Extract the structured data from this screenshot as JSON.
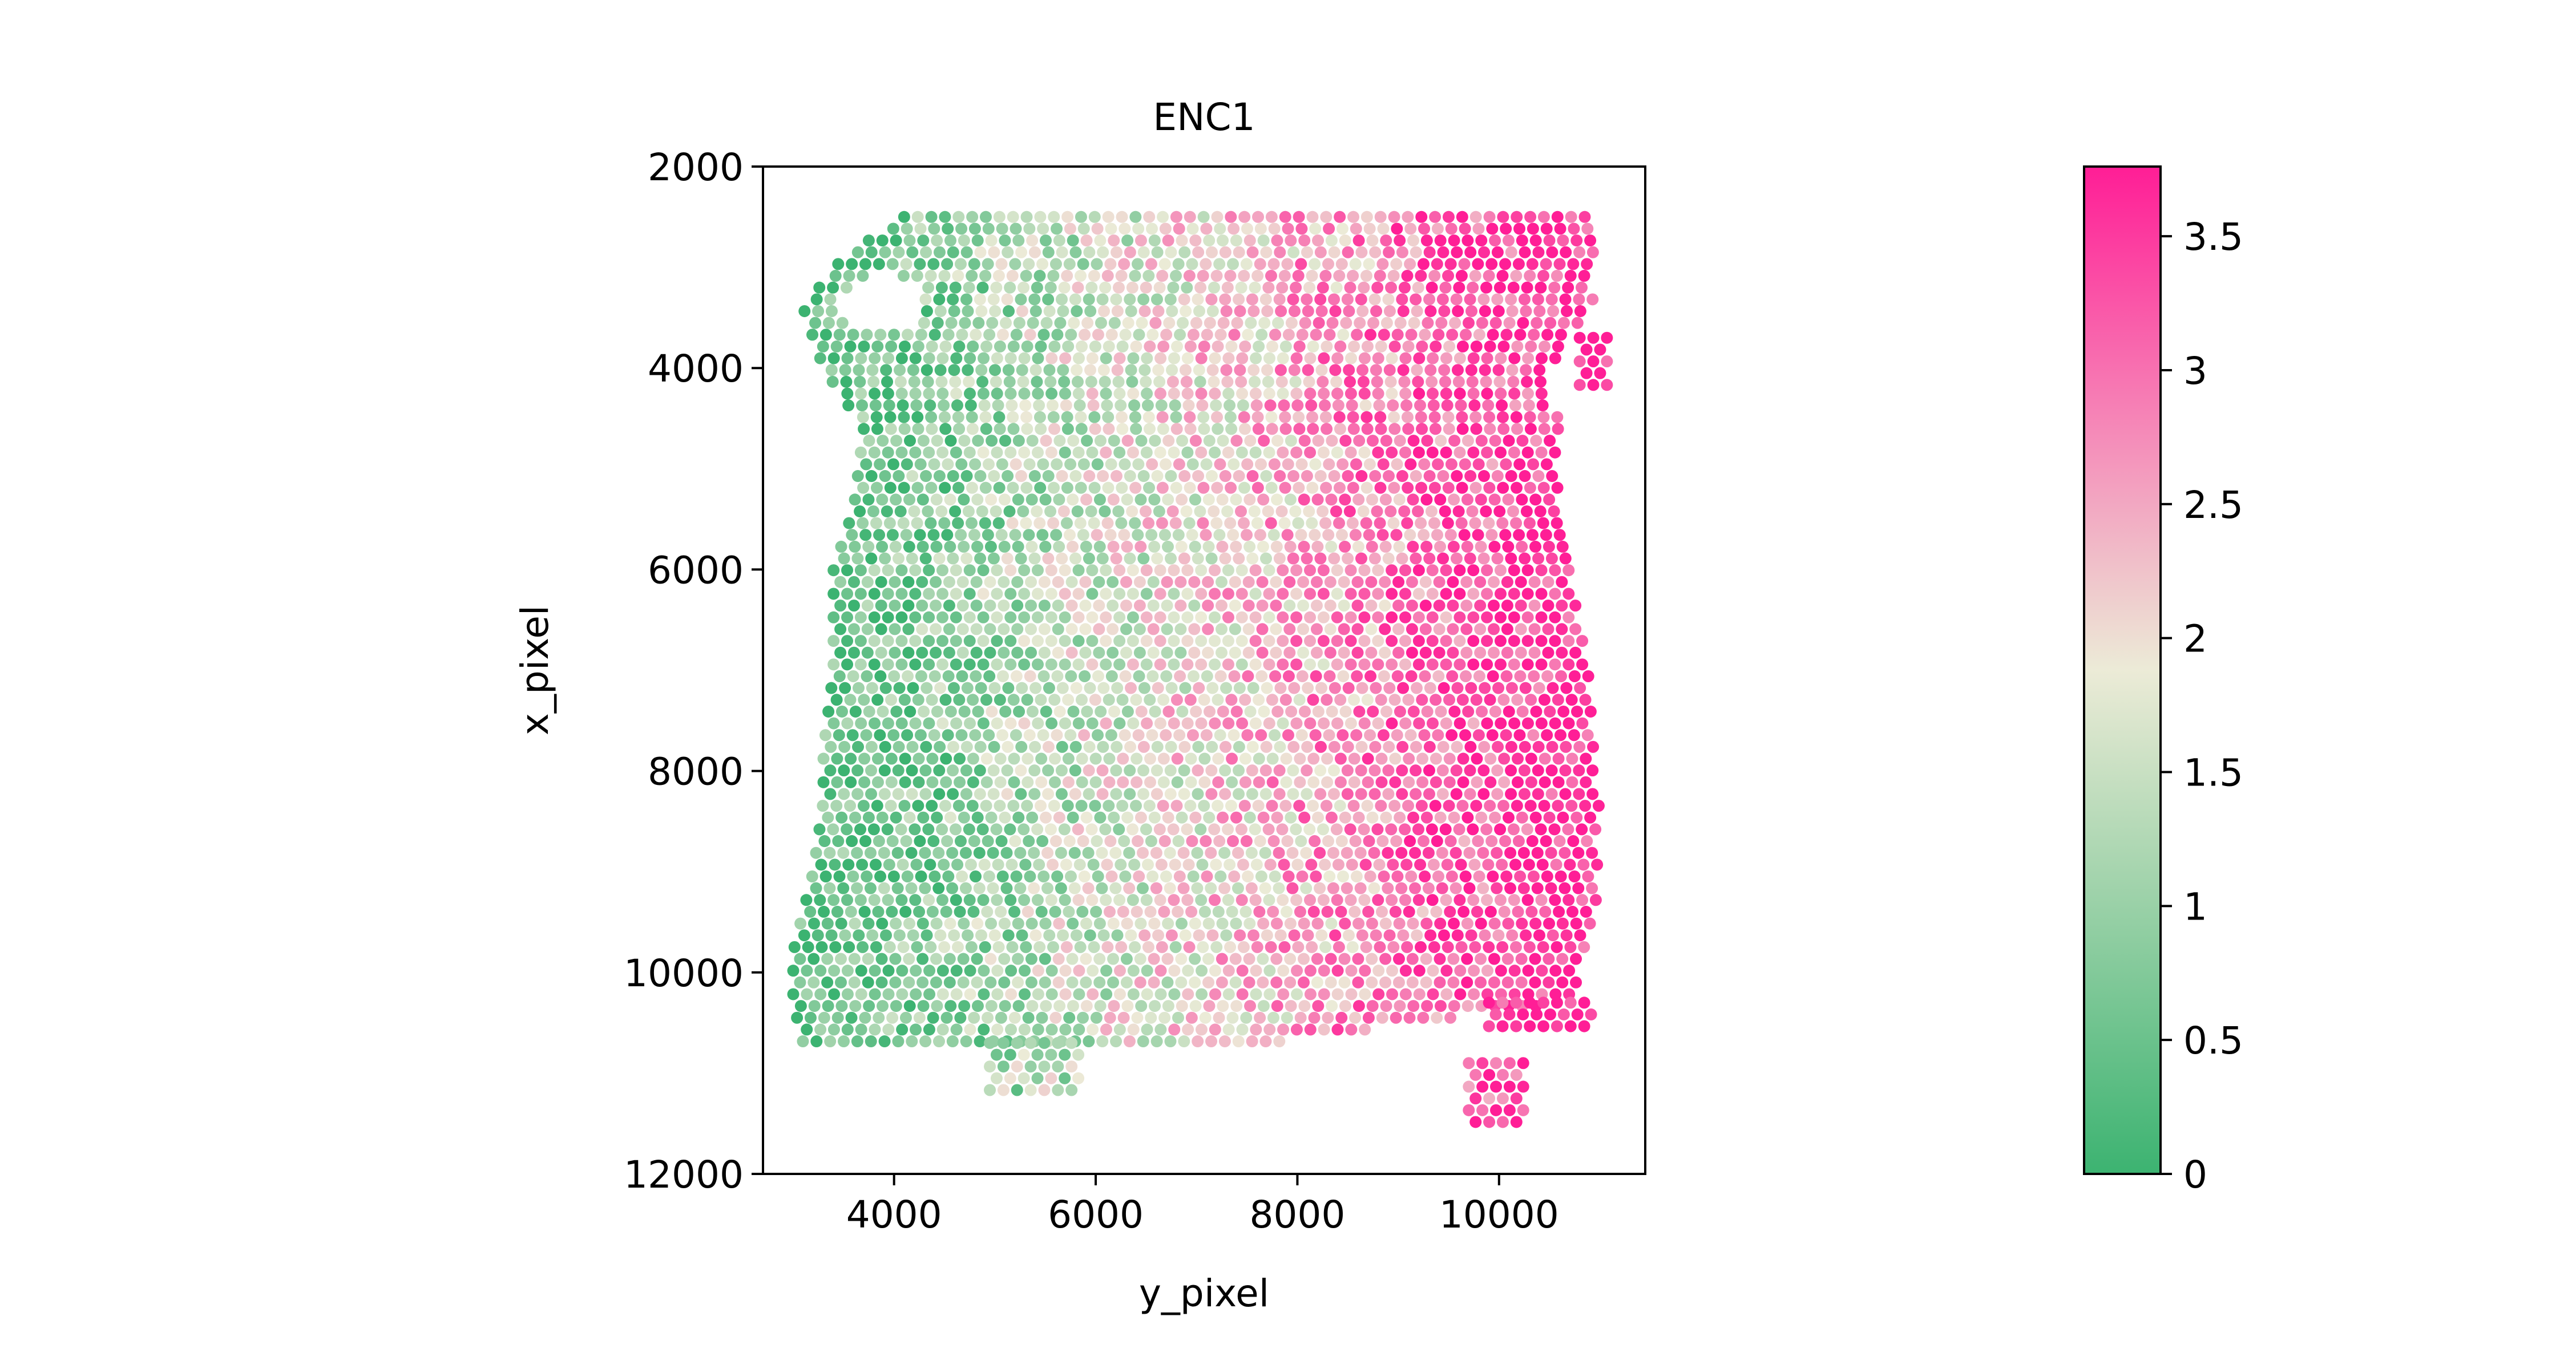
{
  "chart_data": {
    "type": "scatter",
    "title": "ENC1",
    "xlabel": "y_pixel",
    "ylabel": "x_pixel",
    "xlim": [
      2700,
      11450
    ],
    "ylim": [
      12000,
      2000
    ],
    "y_inverted": true,
    "xticks": [
      {
        "value": 4000,
        "label": "4000"
      },
      {
        "value": 6000,
        "label": "6000"
      },
      {
        "value": 8000,
        "label": "8000"
      },
      {
        "value": 10000,
        "label": "10000"
      }
    ],
    "yticks": [
      {
        "value": 2000,
        "label": "2000"
      },
      {
        "value": 4000,
        "label": "4000"
      },
      {
        "value": 6000,
        "label": "6000"
      },
      {
        "value": 8000,
        "label": "8000"
      },
      {
        "value": 10000,
        "label": "10000"
      },
      {
        "value": 12000,
        "label": "12000"
      }
    ],
    "grid": false,
    "colorbar": {
      "min": 0,
      "max": 3.76,
      "colors": [
        "#3cb371",
        "#ecebd7",
        "#ff1e96"
      ],
      "ticks": [
        {
          "value": 0,
          "label": "0"
        },
        {
          "value": 0.5,
          "label": "0.5"
        },
        {
          "value": 1,
          "label": "1"
        },
        {
          "value": 1.5,
          "label": "1.5"
        },
        {
          "value": 2,
          "label": "2"
        },
        {
          "value": 2.5,
          "label": "2.5"
        },
        {
          "value": 3,
          "label": "3"
        },
        {
          "value": 3.5,
          "label": "3.5"
        }
      ]
    },
    "tissue_spots": {
      "grid_step": 135,
      "rows": [
        {
          "x": 2500,
          "y_from": 4100,
          "y_to": 10950
        },
        {
          "x": 2900,
          "y_from": 3500,
          "y_to": 10950
        },
        {
          "x": 3400,
          "y_from": 3100,
          "y_to": 10950
        },
        {
          "x": 4000,
          "y_from": 3300,
          "y_to": 10500
        },
        {
          "x": 4600,
          "y_from": 3700,
          "y_to": 10600
        },
        {
          "x": 5400,
          "y_from": 3600,
          "y_to": 10600
        },
        {
          "x": 6000,
          "y_from": 3400,
          "y_to": 10700
        },
        {
          "x": 7000,
          "y_from": 3400,
          "y_to": 10900
        },
        {
          "x": 7800,
          "y_from": 3300,
          "y_to": 10950
        },
        {
          "x": 8300,
          "y_from": 3300,
          "y_to": 11000
        },
        {
          "x": 9000,
          "y_from": 3200,
          "y_to": 11000
        },
        {
          "x": 9800,
          "y_from": 3000,
          "y_to": 10900
        },
        {
          "x": 10300,
          "y_from": 3000,
          "y_to": 10700
        },
        {
          "x": 10700,
          "y_from": 3100,
          "y_to": 7800
        }
      ],
      "hole": {
        "y_center": 3900,
        "x_center": 3350,
        "y_radius": 400,
        "x_radius": 300
      },
      "extra_clusters": [
        {
          "y_from": 4950,
          "y_to": 5850,
          "x_from": 10700,
          "x_to": 11200
        },
        {
          "y_from": 9700,
          "y_to": 10300,
          "x_from": 10900,
          "x_to": 11600
        },
        {
          "y_from": 9900,
          "y_to": 10950,
          "x_from": 10300,
          "x_to": 10600
        },
        {
          "y_from": 10800,
          "y_to": 11100,
          "x_from": 3700,
          "x_to": 4200
        }
      ],
      "expression_trend": {
        "low_at_y": 3000,
        "high_at_y": 10800,
        "low": 0.2,
        "high": 3.7,
        "noise": 0.9
      },
      "seed": 7
    }
  }
}
